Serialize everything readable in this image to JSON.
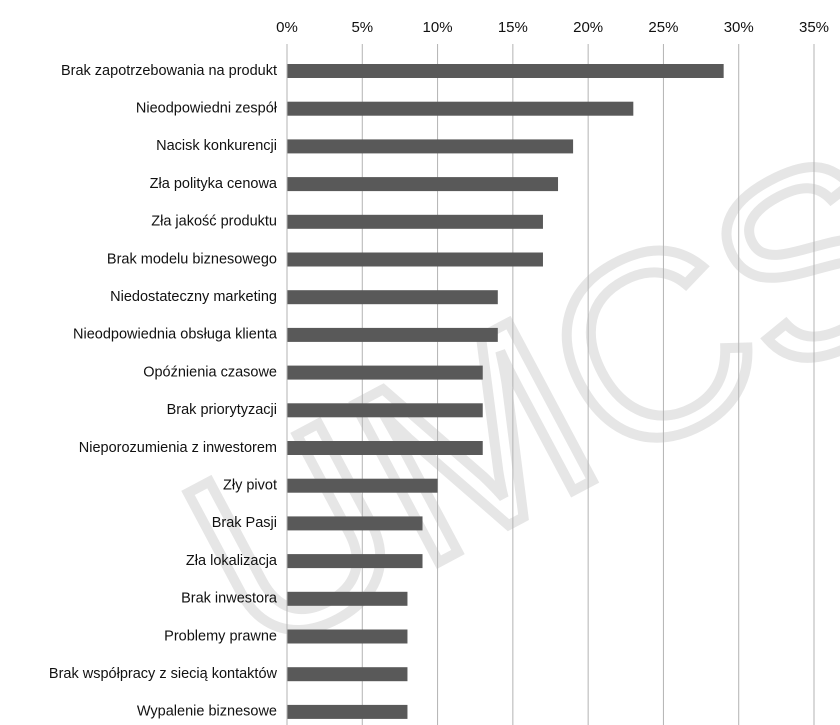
{
  "chart_data": {
    "type": "bar",
    "orientation": "horizontal",
    "title": "",
    "xlabel": "",
    "ylabel": "",
    "xlim": [
      0,
      35
    ],
    "x_tick_values": [
      0,
      5,
      10,
      15,
      20,
      25,
      30,
      35
    ],
    "x_tick_labels": [
      "0%",
      "5%",
      "10%",
      "15%",
      "20%",
      "25%",
      "30%",
      "35%"
    ],
    "x_axis_position": "top",
    "grid": true,
    "legend": "none",
    "categories": [
      "Brak zapotrzebowania na produkt",
      "Nieodpowiedni zespół",
      "Nacisk konkurencji",
      "Zła polityka cenowa",
      "Zła jakość produktu",
      "Brak modelu biznesowego",
      "Niedostateczny marketing",
      "Nieodpowiednia obsługa klienta",
      "Opóźnienia czasowe",
      "Brak priorytyzacji",
      "Nieporozumienia z inwestorem",
      "Zły pivot",
      "Brak Pasji",
      "Zła lokalizacja",
      "Brak inwestora",
      "Problemy prawne",
      "Brak współpracy z siecią kontaktów",
      "Wypalenie biznesowe"
    ],
    "values": [
      29,
      23,
      19,
      18,
      17,
      17,
      14,
      14,
      13,
      13,
      13,
      10,
      9,
      9,
      8,
      8,
      8,
      8
    ],
    "colors": {
      "bar": "#595959",
      "grid": "#b3b3b3",
      "text": "#111111",
      "watermark": "#e6e6e6"
    },
    "watermark": "UMCS"
  }
}
